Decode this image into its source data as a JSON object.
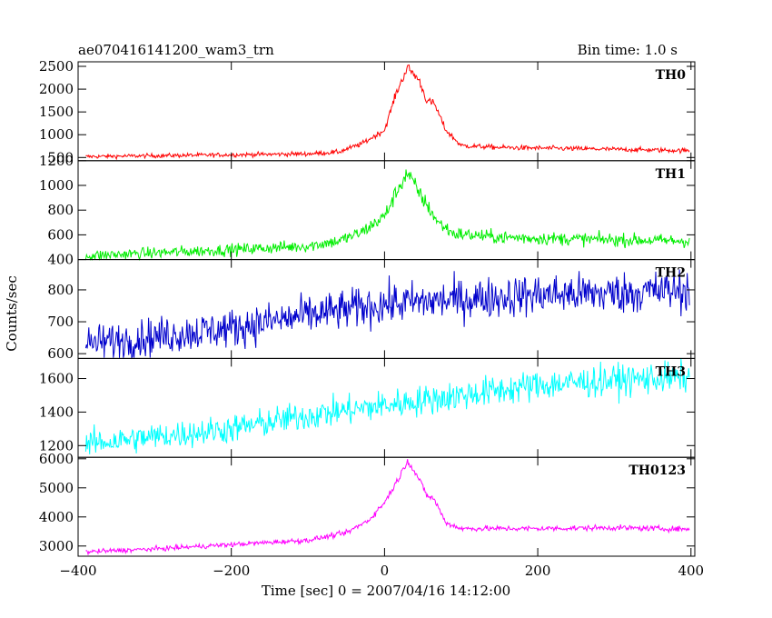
{
  "header": {
    "title": "ae070416141200_wam3_trn",
    "bin_time": "Bin time: 1.0 s"
  },
  "chart_data": {
    "type": "line",
    "title": "ae070416141200_wam3_trn",
    "xlabel": "Time [sec] 0 = 2007/04/16 14:12:00",
    "ylabel": "Counts/sec",
    "xlim": [
      -400,
      405
    ],
    "x_ticks": [
      -400,
      -200,
      0,
      200,
      400
    ],
    "x_tick_labels": [
      "−400",
      "−200",
      "0",
      "200",
      "400"
    ],
    "x_data_range": [
      -390,
      398
    ],
    "grid": false,
    "panels": [
      {
        "name": "TH0",
        "color": "#ff0000",
        "ylim": [
          430,
          2600
        ],
        "yticks": [
          500,
          1000,
          1500,
          2000,
          2500
        ],
        "ytick_labels": [
          "500",
          "1000",
          "1500",
          "2000",
          "2500"
        ],
        "noise": 25,
        "profile": [
          [
            -390,
            520
          ],
          [
            -200,
            560
          ],
          [
            -100,
            580
          ],
          [
            -60,
            620
          ],
          [
            -30,
            800
          ],
          [
            0,
            1100
          ],
          [
            15,
            1900
          ],
          [
            30,
            2480
          ],
          [
            45,
            2200
          ],
          [
            55,
            1750
          ],
          [
            65,
            1680
          ],
          [
            80,
            1100
          ],
          [
            100,
            760
          ],
          [
            150,
            720
          ],
          [
            300,
            680
          ],
          [
            398,
            650
          ]
        ]
      },
      {
        "name": "TH1",
        "color": "#00ee00",
        "ylim": [
          400,
          1200
        ],
        "yticks": [
          400,
          600,
          800,
          1000,
          1200
        ],
        "ytick_labels": [
          "400",
          "600",
          "800",
          "1000",
          "1200"
        ],
        "noise": 25,
        "profile": [
          [
            -390,
            430
          ],
          [
            -200,
            480
          ],
          [
            -100,
            510
          ],
          [
            -60,
            550
          ],
          [
            -30,
            620
          ],
          [
            0,
            750
          ],
          [
            20,
            1000
          ],
          [
            30,
            1100
          ],
          [
            45,
            940
          ],
          [
            70,
            700
          ],
          [
            90,
            610
          ],
          [
            150,
            580
          ],
          [
            300,
            560
          ],
          [
            398,
            550
          ]
        ]
      },
      {
        "name": "TH2",
        "color": "#0000cc",
        "ylim": [
          585,
          895
        ],
        "yticks": [
          600,
          700,
          800
        ],
        "ytick_labels": [
          "600",
          "700",
          "800"
        ],
        "noise": 32,
        "profile": [
          [
            -390,
            630
          ],
          [
            -200,
            680
          ],
          [
            -100,
            720
          ],
          [
            0,
            755
          ],
          [
            100,
            770
          ],
          [
            200,
            785
          ],
          [
            300,
            790
          ],
          [
            398,
            800
          ]
        ]
      },
      {
        "name": "TH3",
        "color": "#00ffff",
        "ylim": [
          1130,
          1720
        ],
        "yticks": [
          1200,
          1400,
          1600
        ],
        "ytick_labels": [
          "1200",
          "1400",
          "1600"
        ],
        "noise": 45,
        "profile": [
          [
            -390,
            1210
          ],
          [
            -200,
            1300
          ],
          [
            -100,
            1380
          ],
          [
            0,
            1440
          ],
          [
            100,
            1500
          ],
          [
            200,
            1560
          ],
          [
            300,
            1590
          ],
          [
            398,
            1610
          ]
        ]
      },
      {
        "name": "TH0123",
        "color": "#ff00ff",
        "ylim": [
          2650,
          6050
        ],
        "yticks": [
          3000,
          4000,
          5000,
          6000
        ],
        "ytick_labels": [
          "3000",
          "4000",
          "5000",
          "6000"
        ],
        "noise": 45,
        "profile": [
          [
            -390,
            2800
          ],
          [
            -300,
            2900
          ],
          [
            -200,
            3050
          ],
          [
            -100,
            3200
          ],
          [
            -50,
            3450
          ],
          [
            -20,
            3900
          ],
          [
            0,
            4500
          ],
          [
            20,
            5400
          ],
          [
            30,
            5950
          ],
          [
            45,
            5300
          ],
          [
            55,
            4750
          ],
          [
            65,
            4600
          ],
          [
            80,
            3800
          ],
          [
            100,
            3600
          ],
          [
            200,
            3600
          ],
          [
            300,
            3630
          ],
          [
            398,
            3580
          ]
        ]
      }
    ]
  }
}
